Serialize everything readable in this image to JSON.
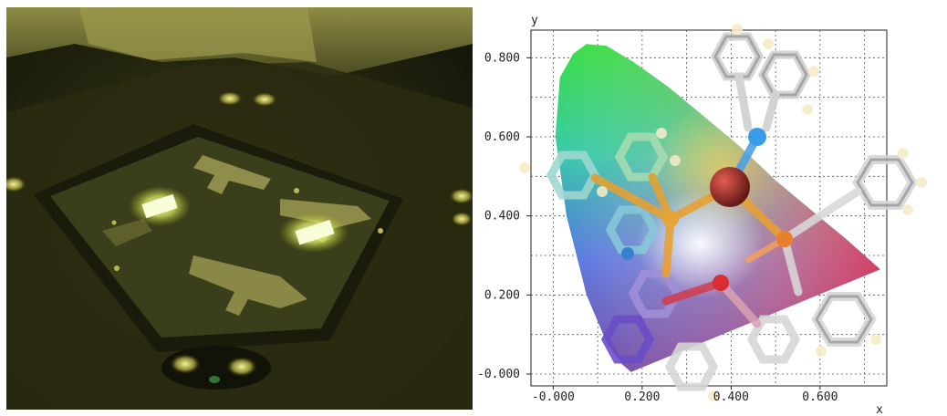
{
  "photo": {
    "description_icon": "oled-device-photo"
  },
  "chart_data": {
    "type": "scatter",
    "title": "",
    "xlabel": "x",
    "ylabel": "y",
    "xlim": [
      -0.05,
      0.75
    ],
    "ylim": [
      -0.03,
      0.87
    ],
    "x_ticks": [
      "-0.000",
      "0.200",
      "0.400",
      "0.600"
    ],
    "x_tick_values": [
      0.0,
      0.2,
      0.4,
      0.6
    ],
    "y_ticks": [
      "-0.000",
      "0.200",
      "0.400",
      "0.600",
      "0.800"
    ],
    "y_tick_values": [
      0.0,
      0.2,
      0.4,
      0.6,
      0.8
    ],
    "grid": true,
    "x_gridlines": [
      0.0,
      0.1,
      0.2,
      0.3,
      0.4,
      0.5,
      0.6,
      0.7
    ],
    "y_gridlines": [
      0.0,
      0.1,
      0.2,
      0.3,
      0.4,
      0.5,
      0.6,
      0.7,
      0.8
    ],
    "overlay": "molecular-structure-icon",
    "gamut": [
      [
        0.175,
        0.005
      ],
      [
        0.155,
        0.025
      ],
      [
        0.12,
        0.08
      ],
      [
        0.075,
        0.2
      ],
      [
        0.03,
        0.4
      ],
      [
        0.005,
        0.6
      ],
      [
        0.015,
        0.75
      ],
      [
        0.045,
        0.81
      ],
      [
        0.075,
        0.835
      ],
      [
        0.12,
        0.83
      ],
      [
        0.18,
        0.79
      ],
      [
        0.26,
        0.725
      ],
      [
        0.33,
        0.66
      ],
      [
        0.42,
        0.575
      ],
      [
        0.5,
        0.49
      ],
      [
        0.59,
        0.405
      ],
      [
        0.66,
        0.34
      ],
      [
        0.735,
        0.265
      ]
    ]
  }
}
